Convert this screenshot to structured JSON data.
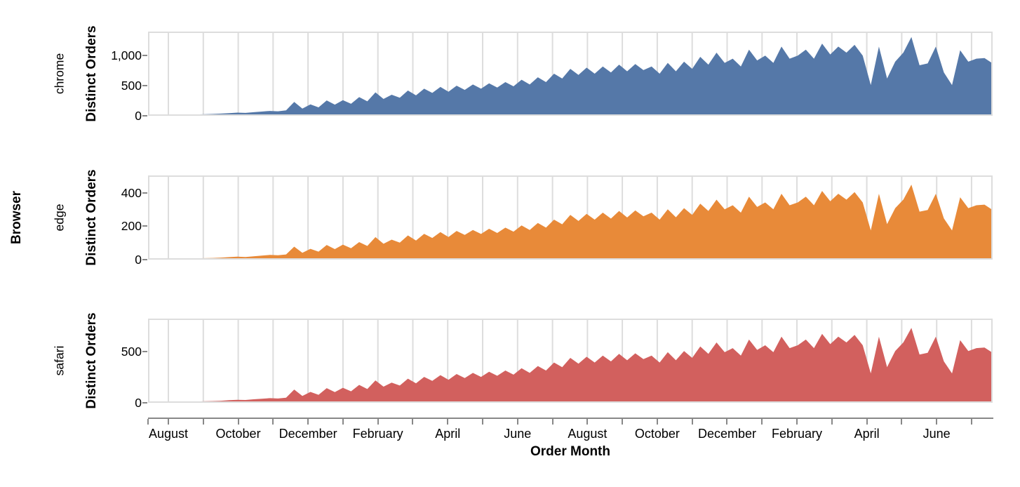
{
  "figure": {
    "row_title": "Browser",
    "y_axis_title": "Distinct Orders",
    "x_axis_title": "Order Month",
    "grid_color": "#dddddd",
    "border_color": "#dddddd",
    "axis_color": "#888888",
    "text_color": "#000000"
  },
  "chart_data": {
    "type": "area",
    "title": "",
    "xlabel": "Order Month",
    "ylabel": "Distinct Orders",
    "facet_row_title": "Browser",
    "x_unit": "week",
    "x_tick_interval": "month",
    "x_tick_labels": [
      "August",
      "October",
      "December",
      "February",
      "April",
      "June",
      "August",
      "October",
      "December",
      "February",
      "April",
      "June"
    ],
    "grid": "vertical-monthly",
    "legend": "none",
    "series": [
      {
        "name": "chrome",
        "color": "#5578a8",
        "ylim": [
          0,
          1400
        ],
        "yticks": [
          0,
          500,
          1000
        ],
        "ytick_labels": [
          "0",
          "500",
          "1,000"
        ],
        "values": [
          6,
          8,
          10,
          12,
          14,
          18,
          22,
          26,
          30,
          36,
          44,
          52,
          48,
          60,
          70,
          80,
          75,
          90,
          230,
          120,
          190,
          140,
          255,
          185,
          260,
          200,
          310,
          240,
          390,
          280,
          350,
          300,
          420,
          340,
          450,
          380,
          480,
          400,
          500,
          430,
          520,
          450,
          540,
          470,
          560,
          490,
          600,
          520,
          640,
          560,
          700,
          620,
          780,
          680,
          800,
          700,
          820,
          720,
          850,
          740,
          860,
          760,
          820,
          700,
          880,
          740,
          900,
          780,
          980,
          850,
          1050,
          880,
          950,
          820,
          1100,
          920,
          1000,
          880,
          1150,
          950,
          1000,
          1100,
          950,
          1200,
          1020,
          1150,
          1050,
          1180,
          1000,
          510,
          1150,
          620,
          900,
          1050,
          1310,
          840,
          870,
          1150,
          720,
          510,
          1090,
          900,
          950,
          960,
          870
        ]
      },
      {
        "name": "edge",
        "color": "#e88a39",
        "ylim": [
          0,
          505
        ],
        "yticks": [
          0,
          200,
          400
        ],
        "ytick_labels": [
          "0",
          "200",
          "400"
        ],
        "values": [
          2,
          3,
          4,
          4,
          5,
          6,
          8,
          9,
          10,
          12,
          15,
          18,
          16,
          20,
          24,
          28,
          26,
          31,
          78,
          41,
          65,
          48,
          88,
          63,
          90,
          68,
          105,
          82,
          135,
          95,
          120,
          102,
          145,
          115,
          155,
          130,
          165,
          136,
          172,
          148,
          178,
          154,
          185,
          160,
          192,
          168,
          205,
          178,
          220,
          192,
          240,
          212,
          268,
          232,
          275,
          240,
          282,
          246,
          292,
          253,
          295,
          260,
          282,
          240,
          302,
          254,
          309,
          268,
          336,
          292,
          360,
          302,
          326,
          282,
          378,
          316,
          343,
          302,
          395,
          326,
          343,
          378,
          326,
          412,
          350,
          395,
          360,
          405,
          343,
          175,
          395,
          213,
          309,
          360,
          450,
          288,
          298,
          395,
          247,
          175,
          374,
          309,
          326,
          330,
          298
        ]
      },
      {
        "name": "safari",
        "color": "#d2605e",
        "ylim": [
          0,
          820
        ],
        "yticks": [
          0,
          500
        ],
        "ytick_labels": [
          "0",
          "500"
        ],
        "values": [
          3,
          4,
          6,
          7,
          8,
          10,
          12,
          15,
          17,
          20,
          25,
          29,
          27,
          34,
          39,
          45,
          42,
          50,
          129,
          67,
          106,
          78,
          143,
          104,
          146,
          112,
          174,
          134,
          218,
          157,
          196,
          168,
          235,
          190,
          252,
          213,
          269,
          224,
          280,
          241,
          291,
          252,
          302,
          263,
          314,
          274,
          336,
          291,
          358,
          314,
          392,
          347,
          437,
          381,
          448,
          392,
          459,
          403,
          476,
          414,
          482,
          426,
          459,
          392,
          493,
          414,
          504,
          437,
          549,
          476,
          588,
          493,
          532,
          459,
          616,
          515,
          560,
          493,
          644,
          532,
          560,
          616,
          532,
          672,
          571,
          644,
          588,
          661,
          560,
          286,
          644,
          347,
          504,
          588,
          730,
          470,
          487,
          644,
          403,
          286,
          610,
          504,
          532,
          538,
          487
        ]
      }
    ]
  }
}
